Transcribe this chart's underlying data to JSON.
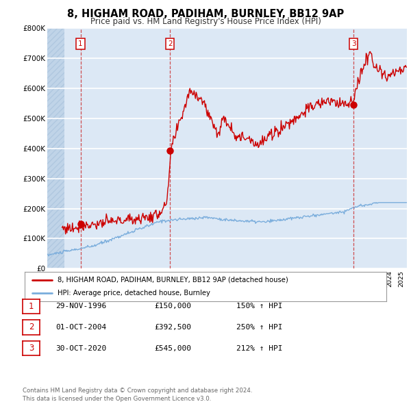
{
  "title": "8, HIGHAM ROAD, PADIHAM, BURNLEY, BB12 9AP",
  "subtitle": "Price paid vs. HM Land Registry's House Price Index (HPI)",
  "xlim": [
    1994.0,
    2025.5
  ],
  "ylim": [
    0,
    800000
  ],
  "yticks": [
    0,
    100000,
    200000,
    300000,
    400000,
    500000,
    600000,
    700000,
    800000
  ],
  "ytick_labels": [
    "£0",
    "£100K",
    "£200K",
    "£300K",
    "£400K",
    "£500K",
    "£600K",
    "£700K",
    "£800K"
  ],
  "bg_color": "#dce8f5",
  "grid_color": "#ffffff",
  "property_color": "#cc0000",
  "hpi_color": "#7aaddc",
  "sale_marker_color": "#cc0000",
  "sales": [
    {
      "date": 1996.91,
      "price": 150000,
      "label": "1"
    },
    {
      "date": 2004.75,
      "price": 392500,
      "label": "2"
    },
    {
      "date": 2020.83,
      "price": 545000,
      "label": "3"
    }
  ],
  "vline_dates": [
    1996.91,
    2004.75,
    2020.83
  ],
  "legend_property_label": "8, HIGHAM ROAD, PADIHAM, BURNLEY, BB12 9AP (detached house)",
  "legend_hpi_label": "HPI: Average price, detached house, Burnley",
  "table_rows": [
    {
      "num": "1",
      "date": "29-NOV-1996",
      "price": "£150,000",
      "hpi": "150% ↑ HPI"
    },
    {
      "num": "2",
      "date": "01-OCT-2004",
      "price": "£392,500",
      "hpi": "250% ↑ HPI"
    },
    {
      "num": "3",
      "date": "30-OCT-2020",
      "price": "£545,000",
      "hpi": "212% ↑ HPI"
    }
  ],
  "footer": "Contains HM Land Registry data © Crown copyright and database right 2024.\nThis data is licensed under the Open Government Licence v3.0.",
  "hatch_xlim": [
    1994.0,
    1995.5
  ],
  "hatch_color": "#c0d4e8"
}
